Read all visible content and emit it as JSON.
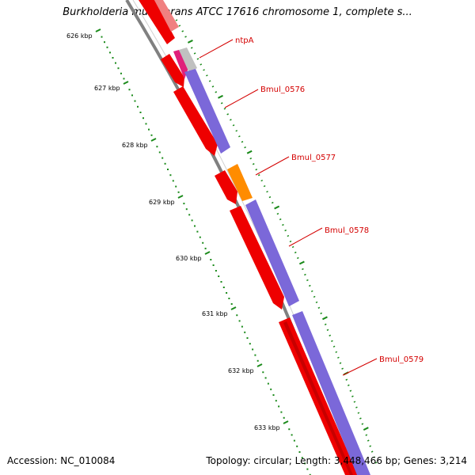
{
  "title": "Burkholderia multivorans ATCC 17616 chromosome 1, complete s...",
  "footer": {
    "accession": "Accession: NC_010084",
    "summary": "Topology: circular; Length: 3,448,466 bp; Genes: 3,214"
  },
  "scale": {
    "unit": "kbp",
    "labels": [
      "626 kbp",
      "627 kbp",
      "628 kbp",
      "629 kbp",
      "630 kbp",
      "631 kbp",
      "632 kbp",
      "633 kbp"
    ]
  },
  "genes": [
    {
      "name": "ntpA"
    },
    {
      "name": "Bmul_0576"
    },
    {
      "name": "Bmul_0577"
    },
    {
      "name": "Bmul_0578"
    },
    {
      "name": "Bmul_0579"
    }
  ],
  "colors": {
    "cds_forward": "#ee0000",
    "cds_shadow": "#a00000",
    "cds_faded": "#f08080",
    "feature_track": "#7b68d9",
    "rna_feature": "#ff8c00",
    "magenta_feature": "#e0207a",
    "backbone": "#808080",
    "ticks": "#1a8a1a",
    "labels": "#d40000"
  }
}
